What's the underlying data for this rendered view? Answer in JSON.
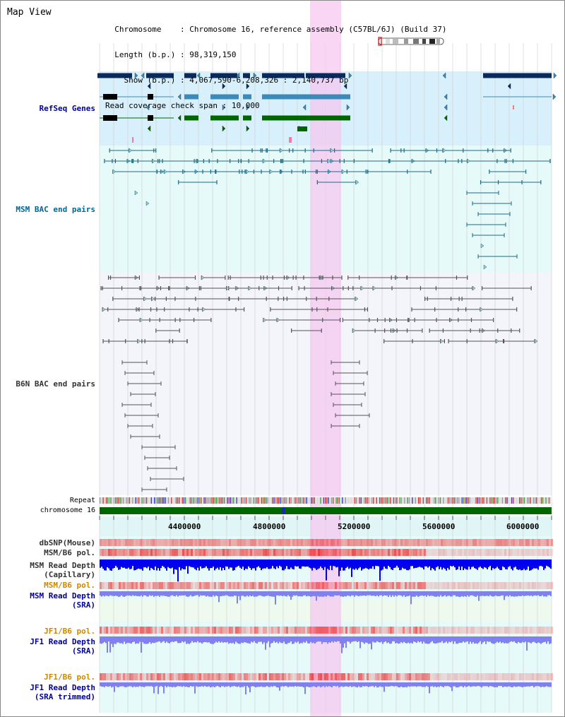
{
  "page": {
    "title": "Map View",
    "info": {
      "chromosome_label": "Chromosome",
      "chromosome_value": "Chromosome 16, reference assembly (C57BL/6J) (Build 37)",
      "length_label": "Length (b.p.)",
      "length_value": "98,319,150",
      "show_label": "Show (b.p.)",
      "show_value": "4,067,590-6,208,326 : 2,140,737 bp",
      "coverage_label": "Read coverage check span",
      "coverage_value": "10,000"
    }
  },
  "tracks": {
    "refseq": {
      "label": "RefSeq Genes",
      "color": "#000099"
    },
    "msm_bac": {
      "label": "MSM BAC end pairs",
      "color": "#006699"
    },
    "b6n_bac": {
      "label": "B6N BAC end pairs",
      "color": "#333333"
    },
    "repeat": {
      "label": "Repeat"
    },
    "chromosome": {
      "label": "chromosome 16"
    },
    "dbsnp": {
      "label": "dbSNP(Mouse)"
    },
    "msm_b6_pol_1": {
      "label": "MSM/B6 pol."
    },
    "msm_read_depth_cap": {
      "label": "MSM Read Depth\n(Capillary)"
    },
    "msm_b6_pol_2": {
      "label": "MSM/B6 pol.",
      "color": "#cc8800"
    },
    "msm_read_depth_sra": {
      "label": "MSM Read Depth\n(SRA)",
      "color": "#000099"
    },
    "jf1_b6_pol_1": {
      "label": "JF1/B6 pol.",
      "color": "#cc8800"
    },
    "jf1_read_depth_sra": {
      "label": "JF1 Read Depth\n(SRA)",
      "color": "#000099"
    },
    "jf1_b6_pol_2": {
      "label": "JF1/B6 pol.",
      "color": "#cc8800"
    },
    "jf1_read_depth_trim": {
      "label": "JF1 Read Depth\n(SRA trimmed)",
      "color": "#000099"
    }
  },
  "axis": {
    "ticks": [
      "4400000",
      "4800000",
      "5200000",
      "5600000",
      "6000000"
    ]
  },
  "colors": {
    "highlight": "#f5c8f0",
    "refseq_bg": "#d8f0fb",
    "msm_bg": "#e6fafa",
    "b6n_bg": "#f4f4fb",
    "gene_dark": "#0a2a5e",
    "gene_mid": "#3b8ab8",
    "gene_green": "#006600",
    "chrom_bar": "#006600",
    "depth_blue": "#0000ee",
    "depth_light": "#8080f0",
    "pol_red": "#ee3333"
  }
}
